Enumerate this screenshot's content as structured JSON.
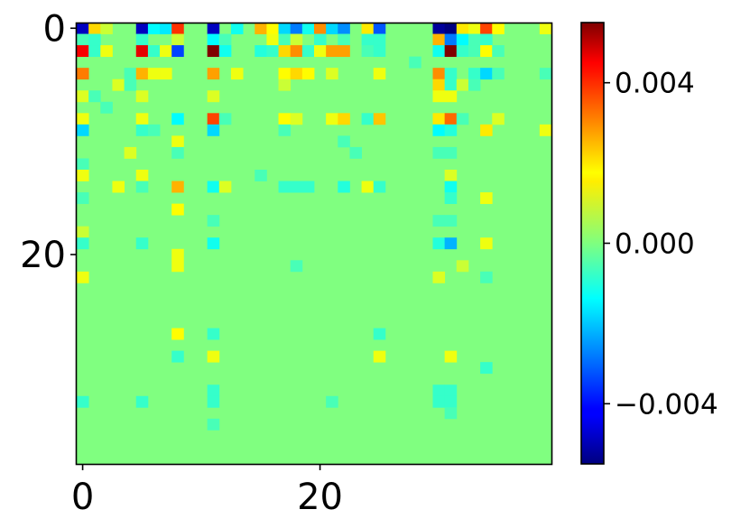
{
  "chart_data": {
    "type": "heatmap",
    "title": "",
    "xlabel": "",
    "ylabel": "",
    "rows": 39,
    "cols": 40,
    "x_ticks": [
      0,
      20
    ],
    "y_ticks": [
      0,
      20
    ],
    "x_tick_labels": [
      "0",
      "20"
    ],
    "y_tick_labels": [
      "0",
      "20"
    ],
    "colormap": "jet",
    "value_range": [
      -0.0055,
      0.0055
    ],
    "default_value": 0.0,
    "colorbar": {
      "ticks": [
        0.004,
        0.0,
        -0.004
      ],
      "tick_labels": [
        "0.004",
        "0.000",
        "−0.004"
      ]
    },
    "cells": [
      {
        "r": 0,
        "c": 0,
        "v": -0.0048
      },
      {
        "r": 0,
        "c": 1,
        "v": 0.0018
      },
      {
        "r": 0,
        "c": 2,
        "v": 0.0008
      },
      {
        "r": 0,
        "c": 5,
        "v": -0.0048
      },
      {
        "r": 0,
        "c": 6,
        "v": -0.0014
      },
      {
        "r": 0,
        "c": 7,
        "v": -0.0016
      },
      {
        "r": 0,
        "c": 8,
        "v": 0.0036
      },
      {
        "r": 0,
        "c": 11,
        "v": -0.0048
      },
      {
        "r": 0,
        "c": 13,
        "v": -0.0012
      },
      {
        "r": 0,
        "c": 15,
        "v": 0.0022
      },
      {
        "r": 0,
        "c": 16,
        "v": 0.0014
      },
      {
        "r": 0,
        "c": 17,
        "v": -0.0018
      },
      {
        "r": 0,
        "c": 18,
        "v": -0.0028
      },
      {
        "r": 0,
        "c": 19,
        "v": -0.0012
      },
      {
        "r": 0,
        "c": 20,
        "v": 0.0026
      },
      {
        "r": 0,
        "c": 21,
        "v": -0.0018
      },
      {
        "r": 0,
        "c": 22,
        "v": -0.0026
      },
      {
        "r": 0,
        "c": 24,
        "v": 0.0016
      },
      {
        "r": 0,
        "c": 25,
        "v": -0.0032
      },
      {
        "r": 0,
        "c": 30,
        "v": -0.0052
      },
      {
        "r": 0,
        "c": 31,
        "v": -0.0058
      },
      {
        "r": 0,
        "c": 32,
        "v": 0.0016
      },
      {
        "r": 0,
        "c": 33,
        "v": 0.0012
      },
      {
        "r": 0,
        "c": 34,
        "v": 0.0034
      },
      {
        "r": 0,
        "c": 35,
        "v": 0.0014
      },
      {
        "r": 0,
        "c": 39,
        "v": 0.0012
      },
      {
        "r": 1,
        "c": 0,
        "v": -0.0006
      },
      {
        "r": 1,
        "c": 1,
        "v": -0.0008
      },
      {
        "r": 1,
        "c": 5,
        "v": -0.0008
      },
      {
        "r": 1,
        "c": 8,
        "v": 0.0008
      },
      {
        "r": 1,
        "c": 11,
        "v": -0.0014
      },
      {
        "r": 1,
        "c": 12,
        "v": -0.0006
      },
      {
        "r": 1,
        "c": 16,
        "v": 0.0012
      },
      {
        "r": 1,
        "c": 17,
        "v": -0.0006
      },
      {
        "r": 1,
        "c": 18,
        "v": 0.0008
      },
      {
        "r": 1,
        "c": 20,
        "v": -0.0008
      },
      {
        "r": 1,
        "c": 22,
        "v": -0.0006
      },
      {
        "r": 1,
        "c": 24,
        "v": -0.0008
      },
      {
        "r": 1,
        "c": 25,
        "v": -0.0008
      },
      {
        "r": 1,
        "c": 30,
        "v": 0.0022
      },
      {
        "r": 1,
        "c": 31,
        "v": -0.0028
      },
      {
        "r": 1,
        "c": 32,
        "v": -0.0014
      },
      {
        "r": 1,
        "c": 33,
        "v": -0.0006
      },
      {
        "r": 1,
        "c": 34,
        "v": -0.0008
      },
      {
        "r": 2,
        "c": 0,
        "v": 0.0042
      },
      {
        "r": 2,
        "c": 1,
        "v": -0.0008
      },
      {
        "r": 2,
        "c": 2,
        "v": 0.0012
      },
      {
        "r": 2,
        "c": 5,
        "v": 0.0044
      },
      {
        "r": 2,
        "c": 6,
        "v": -0.0008
      },
      {
        "r": 2,
        "c": 7,
        "v": 0.0012
      },
      {
        "r": 2,
        "c": 8,
        "v": -0.0034
      },
      {
        "r": 2,
        "c": 11,
        "v": 0.006
      },
      {
        "r": 2,
        "c": 12,
        "v": -0.0012
      },
      {
        "r": 2,
        "c": 15,
        "v": -0.001
      },
      {
        "r": 2,
        "c": 16,
        "v": -0.0008
      },
      {
        "r": 2,
        "c": 17,
        "v": 0.0018
      },
      {
        "r": 2,
        "c": 18,
        "v": 0.0026
      },
      {
        "r": 2,
        "c": 19,
        "v": -0.0008
      },
      {
        "r": 2,
        "c": 20,
        "v": 0.0012
      },
      {
        "r": 2,
        "c": 21,
        "v": 0.0024
      },
      {
        "r": 2,
        "c": 22,
        "v": 0.0024
      },
      {
        "r": 2,
        "c": 24,
        "v": -0.0006
      },
      {
        "r": 2,
        "c": 25,
        "v": -0.0008
      },
      {
        "r": 2,
        "c": 30,
        "v": -0.0012
      },
      {
        "r": 2,
        "c": 31,
        "v": 0.006
      },
      {
        "r": 2,
        "c": 32,
        "v": -0.0008
      },
      {
        "r": 2,
        "c": 33,
        "v": -0.0006
      },
      {
        "r": 2,
        "c": 34,
        "v": 0.0014
      },
      {
        "r": 2,
        "c": 35,
        "v": -0.0006
      },
      {
        "r": 3,
        "c": 28,
        "v": -0.0006
      },
      {
        "r": 4,
        "c": 0,
        "v": 0.0028
      },
      {
        "r": 4,
        "c": 4,
        "v": -0.0006
      },
      {
        "r": 4,
        "c": 5,
        "v": 0.0022
      },
      {
        "r": 4,
        "c": 6,
        "v": 0.0012
      },
      {
        "r": 4,
        "c": 7,
        "v": 0.0012
      },
      {
        "r": 4,
        "c": 11,
        "v": 0.0024
      },
      {
        "r": 4,
        "c": 13,
        "v": 0.0012
      },
      {
        "r": 4,
        "c": 17,
        "v": 0.0014
      },
      {
        "r": 4,
        "c": 18,
        "v": 0.0018
      },
      {
        "r": 4,
        "c": 19,
        "v": 0.0014
      },
      {
        "r": 4,
        "c": 21,
        "v": 0.001
      },
      {
        "r": 4,
        "c": 25,
        "v": 0.0012
      },
      {
        "r": 4,
        "c": 30,
        "v": 0.0026
      },
      {
        "r": 4,
        "c": 31,
        "v": -0.0008
      },
      {
        "r": 4,
        "c": 33,
        "v": -0.0008
      },
      {
        "r": 4,
        "c": 34,
        "v": -0.0018
      },
      {
        "r": 4,
        "c": 35,
        "v": -0.0006
      },
      {
        "r": 4,
        "c": 39,
        "v": -0.0006
      },
      {
        "r": 5,
        "c": 3,
        "v": 0.001
      },
      {
        "r": 5,
        "c": 4,
        "v": -0.0006
      },
      {
        "r": 5,
        "c": 17,
        "v": 0.0008
      },
      {
        "r": 5,
        "c": 30,
        "v": 0.0018
      },
      {
        "r": 5,
        "c": 31,
        "v": -0.0008
      },
      {
        "r": 5,
        "c": 32,
        "v": 0.0008
      },
      {
        "r": 5,
        "c": 33,
        "v": -0.0006
      },
      {
        "r": 6,
        "c": 0,
        "v": 0.001
      },
      {
        "r": 6,
        "c": 1,
        "v": -0.0006
      },
      {
        "r": 6,
        "c": 5,
        "v": 0.001
      },
      {
        "r": 6,
        "c": 11,
        "v": 0.001
      },
      {
        "r": 6,
        "c": 30,
        "v": 0.0012
      },
      {
        "r": 6,
        "c": 31,
        "v": 0.0012
      },
      {
        "r": 7,
        "c": 2,
        "v": -0.0006
      },
      {
        "r": 8,
        "c": 0,
        "v": 0.0012
      },
      {
        "r": 8,
        "c": 5,
        "v": 0.0012
      },
      {
        "r": 8,
        "c": 8,
        "v": -0.0014
      },
      {
        "r": 8,
        "c": 11,
        "v": 0.0034
      },
      {
        "r": 8,
        "c": 12,
        "v": -0.0006
      },
      {
        "r": 8,
        "c": 17,
        "v": 0.0014
      },
      {
        "r": 8,
        "c": 18,
        "v": 0.001
      },
      {
        "r": 8,
        "c": 21,
        "v": 0.0012
      },
      {
        "r": 8,
        "c": 22,
        "v": 0.0018
      },
      {
        "r": 8,
        "c": 24,
        "v": -0.0008
      },
      {
        "r": 8,
        "c": 25,
        "v": 0.002
      },
      {
        "r": 8,
        "c": 30,
        "v": 0.0016
      },
      {
        "r": 8,
        "c": 31,
        "v": 0.003
      },
      {
        "r": 8,
        "c": 32,
        "v": -0.0006
      },
      {
        "r": 8,
        "c": 35,
        "v": 0.001
      },
      {
        "r": 9,
        "c": 0,
        "v": -0.0018
      },
      {
        "r": 9,
        "c": 5,
        "v": -0.0008
      },
      {
        "r": 9,
        "c": 6,
        "v": -0.0006
      },
      {
        "r": 9,
        "c": 11,
        "v": -0.0018
      },
      {
        "r": 9,
        "c": 17,
        "v": -0.0006
      },
      {
        "r": 9,
        "c": 30,
        "v": -0.0014
      },
      {
        "r": 9,
        "c": 31,
        "v": -0.001
      },
      {
        "r": 9,
        "c": 34,
        "v": 0.0016
      },
      {
        "r": 9,
        "c": 39,
        "v": 0.0012
      },
      {
        "r": 10,
        "c": 8,
        "v": 0.0012
      },
      {
        "r": 10,
        "c": 22,
        "v": -0.0006
      },
      {
        "r": 11,
        "c": 8,
        "v": -0.0006
      },
      {
        "r": 11,
        "c": 23,
        "v": -0.0006
      },
      {
        "r": 11,
        "c": 4,
        "v": 0.001
      },
      {
        "r": 11,
        "c": 30,
        "v": -0.0006
      },
      {
        "r": 11,
        "c": 31,
        "v": -0.0006
      },
      {
        "r": 12,
        "c": 0,
        "v": -0.0006
      },
      {
        "r": 13,
        "c": 0,
        "v": 0.0012
      },
      {
        "r": 13,
        "c": 5,
        "v": 0.0012
      },
      {
        "r": 13,
        "c": 15,
        "v": -0.0006
      },
      {
        "r": 13,
        "c": 31,
        "v": 0.001
      },
      {
        "r": 14,
        "c": 3,
        "v": 0.0012
      },
      {
        "r": 14,
        "c": 5,
        "v": -0.0006
      },
      {
        "r": 14,
        "c": 8,
        "v": 0.0022
      },
      {
        "r": 14,
        "c": 11,
        "v": -0.0012
      },
      {
        "r": 14,
        "c": 12,
        "v": 0.001
      },
      {
        "r": 14,
        "c": 17,
        "v": -0.0008
      },
      {
        "r": 14,
        "c": 18,
        "v": -0.0008
      },
      {
        "r": 14,
        "c": 19,
        "v": -0.0008
      },
      {
        "r": 14,
        "c": 22,
        "v": -0.001
      },
      {
        "r": 14,
        "c": 24,
        "v": 0.0012
      },
      {
        "r": 14,
        "c": 25,
        "v": -0.0008
      },
      {
        "r": 14,
        "c": 31,
        "v": -0.0012
      },
      {
        "r": 15,
        "c": 0,
        "v": -0.0006
      },
      {
        "r": 15,
        "c": 31,
        "v": -0.0008
      },
      {
        "r": 15,
        "c": 34,
        "v": 0.0012
      },
      {
        "r": 16,
        "c": 8,
        "v": 0.0014
      },
      {
        "r": 17,
        "c": 11,
        "v": -0.0006
      },
      {
        "r": 17,
        "c": 30,
        "v": -0.0006
      },
      {
        "r": 17,
        "c": 31,
        "v": -0.0006
      },
      {
        "r": 18,
        "c": 0,
        "v": 0.0008
      },
      {
        "r": 19,
        "c": 0,
        "v": -0.0008
      },
      {
        "r": 19,
        "c": 5,
        "v": -0.0008
      },
      {
        "r": 19,
        "c": 11,
        "v": -0.0012
      },
      {
        "r": 19,
        "c": 30,
        "v": -0.001
      },
      {
        "r": 19,
        "c": 31,
        "v": -0.0022
      },
      {
        "r": 19,
        "c": 34,
        "v": 0.0012
      },
      {
        "r": 20,
        "c": 8,
        "v": 0.0012
      },
      {
        "r": 21,
        "c": 8,
        "v": 0.0012
      },
      {
        "r": 21,
        "c": 18,
        "v": -0.0006
      },
      {
        "r": 21,
        "c": 32,
        "v": 0.0008
      },
      {
        "r": 22,
        "c": 0,
        "v": 0.0012
      },
      {
        "r": 22,
        "c": 30,
        "v": 0.001
      },
      {
        "r": 22,
        "c": 34,
        "v": -0.0006
      },
      {
        "r": 27,
        "c": 8,
        "v": 0.0014
      },
      {
        "r": 27,
        "c": 11,
        "v": -0.0008
      },
      {
        "r": 27,
        "c": 25,
        "v": -0.0008
      },
      {
        "r": 29,
        "c": 8,
        "v": -0.0008
      },
      {
        "r": 29,
        "c": 11,
        "v": 0.0012
      },
      {
        "r": 29,
        "c": 25,
        "v": 0.0012
      },
      {
        "r": 29,
        "c": 31,
        "v": 0.0012
      },
      {
        "r": 30,
        "c": 34,
        "v": -0.0008
      },
      {
        "r": 32,
        "c": 11,
        "v": -0.0008
      },
      {
        "r": 32,
        "c": 30,
        "v": -0.0008
      },
      {
        "r": 32,
        "c": 31,
        "v": -0.0008
      },
      {
        "r": 33,
        "c": 0,
        "v": -0.0008
      },
      {
        "r": 33,
        "c": 5,
        "v": -0.0008
      },
      {
        "r": 33,
        "c": 11,
        "v": -0.0008
      },
      {
        "r": 33,
        "c": 21,
        "v": -0.0006
      },
      {
        "r": 33,
        "c": 30,
        "v": -0.0008
      },
      {
        "r": 33,
        "c": 31,
        "v": -0.0008
      },
      {
        "r": 34,
        "c": 31,
        "v": -0.0006
      },
      {
        "r": 35,
        "c": 11,
        "v": -0.0006
      }
    ]
  }
}
